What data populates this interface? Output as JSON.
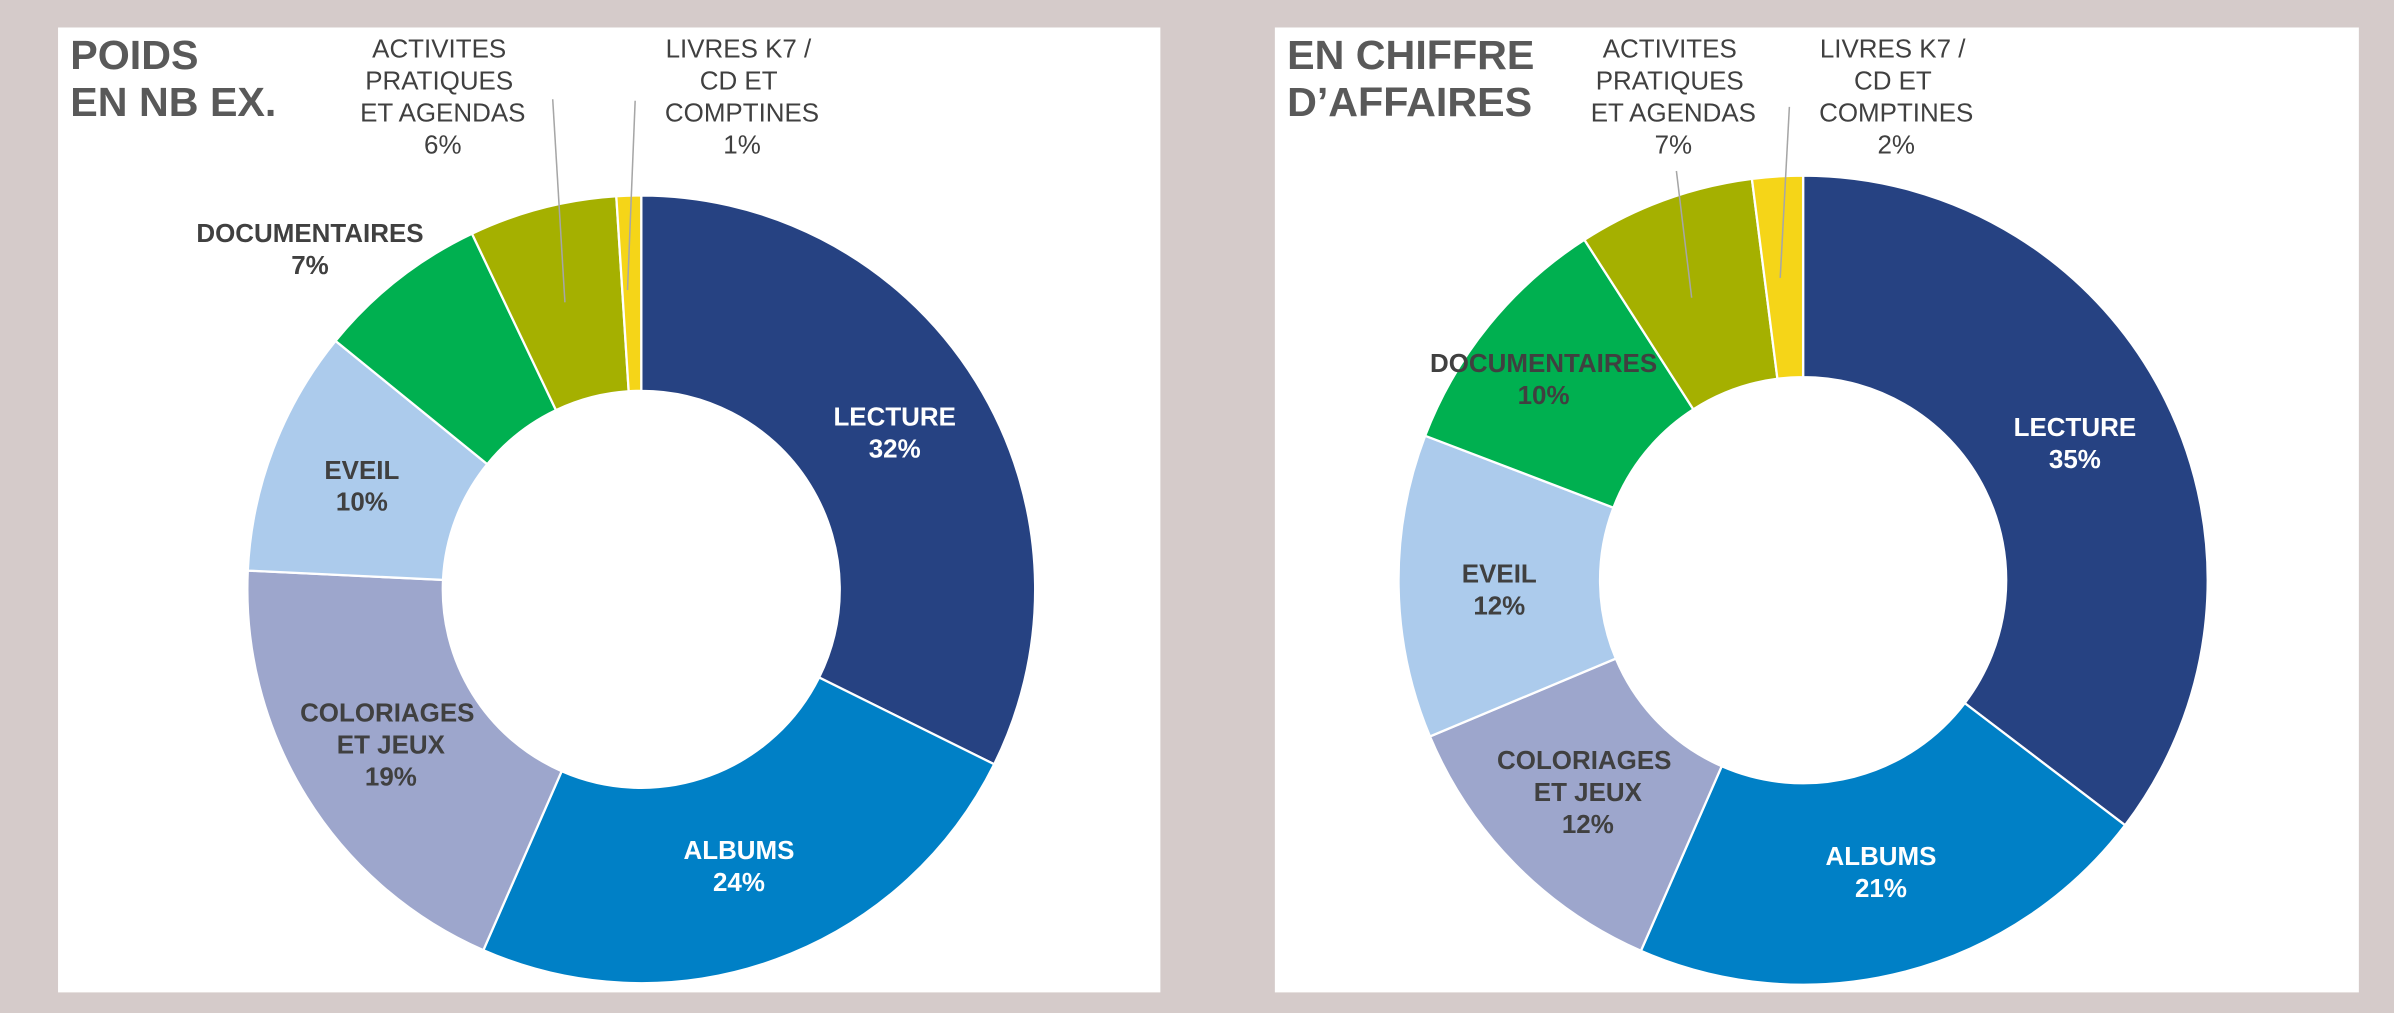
{
  "chart_data": [
    {
      "type": "pie",
      "title": [
        "POIDS",
        "EN NB EX."
      ],
      "categories": [
        "LECTURE",
        "ALBUMS",
        "COLORIAGES ET JEUX",
        "EVEIL",
        "DOCUMENTAIRES",
        "ACTIVITES PRATIQUES ET AGENDAS",
        "LIVRES K7 / CD ET COMPTINES"
      ],
      "values": [
        32,
        24,
        19,
        10,
        7,
        6,
        1
      ],
      "value_labels": [
        "32%",
        "24%",
        "19%",
        "10%",
        "7%",
        "6%",
        "1%"
      ],
      "colors": [
        "#264282",
        "#0080c6",
        "#9da6cc",
        "#accbec",
        "#00b050",
        "#a5b000",
        "#f5d518"
      ]
    },
    {
      "type": "pie",
      "title": [
        "EN CHIFFRE",
        "D’AFFAIRES"
      ],
      "categories": [
        "LECTURE",
        "ALBUMS",
        "COLORIAGES ET JEUX",
        "EVEIL",
        "DOCUMENTAIRES",
        "ACTIVITES PRATIQUES ET AGENDAS",
        "LIVRES K7 / CD ET COMPTINES"
      ],
      "values": [
        35,
        21,
        12,
        12,
        10,
        7,
        2
      ],
      "value_labels": [
        "35%",
        "21%",
        "12%",
        "12%",
        "10%",
        "7%",
        "2%"
      ],
      "colors": [
        "#264282",
        "#0080c6",
        "#9da6cc",
        "#accbec",
        "#00b050",
        "#a5b000",
        "#f5d518"
      ]
    }
  ]
}
